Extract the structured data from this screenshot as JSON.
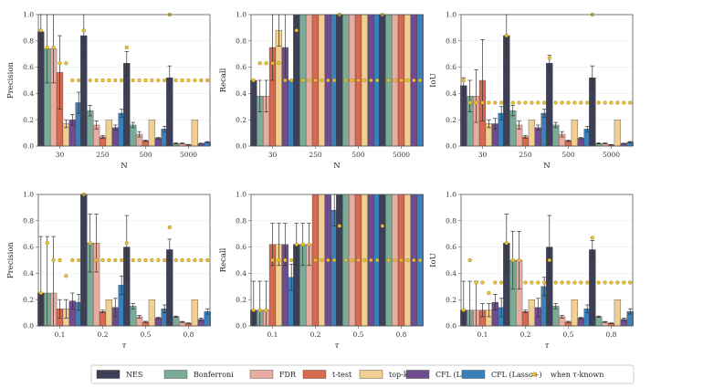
{
  "colors": {
    "NES": "#3c3f55",
    "Bonferroni": "#7aab97",
    "FDR": "#e8ada1",
    "t-test": "#d7694f",
    "top-k": "#f1ce92",
    "CFL (Lasso)": "#6e4c8e",
    "CFL (Lasso+)": "#3a80bb",
    "known": "#f0c233"
  },
  "legend": {
    "items": [
      {
        "name": "NES",
        "label": "NES",
        "kind": "box"
      },
      {
        "name": "Bonferroni",
        "label": "Bonferroni",
        "kind": "box"
      },
      {
        "name": "FDR",
        "label": "FDR",
        "kind": "box"
      },
      {
        "name": "t-test",
        "label": "t-test",
        "kind": "box"
      },
      {
        "name": "top-k",
        "label": "top-k",
        "kind": "box"
      },
      {
        "name": "CFL (Lasso)",
        "label": "CFL (Lasso)",
        "kind": "box"
      },
      {
        "name": "CFL (Lasso+)",
        "label": "CFL (Lasso+)",
        "kind": "box"
      },
      {
        "name": "known",
        "label": "when τ-known",
        "kind": "dot"
      }
    ]
  },
  "chart_data": [
    {
      "type": "bar",
      "title": "",
      "xlabel": "N",
      "ylabel": "Precision",
      "ylim": [
        0,
        1.0
      ],
      "yticks": [
        "0.0",
        "0.2",
        "0.4",
        "0.6",
        "0.8",
        "1.0"
      ],
      "categories": [
        "30",
        "250",
        "500",
        "5000"
      ],
      "series": [
        {
          "name": "NES",
          "values": [
            0.87,
            0.84,
            0.63,
            0.52
          ],
          "err": [
            0.13,
            0.16,
            0.09,
            0.09
          ]
        },
        {
          "name": "Bonferroni",
          "values": [
            0.74,
            0.27,
            0.16,
            0.02
          ],
          "err": [
            0.26,
            0.04,
            0.02,
            0.005
          ]
        },
        {
          "name": "FDR",
          "values": [
            0.74,
            0.16,
            0.09,
            0.02
          ],
          "err": [
            0.26,
            0.03,
            0.02,
            0.004
          ]
        },
        {
          "name": "t-test",
          "values": [
            0.56,
            0.07,
            0.04,
            0.01
          ],
          "err": [
            0.28,
            0.01,
            0.005,
            0.002
          ]
        },
        {
          "name": "top-k",
          "values": [
            0.17,
            0.2,
            0.2,
            0.2
          ],
          "err": [
            0.03,
            0,
            0,
            0
          ]
        },
        {
          "name": "CFL (Lasso)",
          "values": [
            0.2,
            0.14,
            0.06,
            0.02
          ],
          "err": [
            0.04,
            0.02,
            0.005,
            0.002
          ]
        },
        {
          "name": "CFL (Lasso+)",
          "values": [
            0.33,
            0.25,
            0.13,
            0.03
          ],
          "err": [
            0.08,
            0.03,
            0.02,
            0.004
          ]
        }
      ],
      "known": [
        [
          0.88,
          0.75,
          0.75,
          0.63,
          0.63,
          0.5,
          0.5
        ],
        [
          0.88,
          0.5,
          0.5,
          0.5,
          0.5,
          0.5,
          0.5
        ],
        [
          0.75,
          0.5,
          0.5,
          0.5,
          0.5,
          0.5,
          0.5
        ],
        [
          1.0,
          0.5,
          0.5,
          0.5,
          0.5,
          0.5,
          0.5
        ]
      ]
    },
    {
      "type": "bar",
      "title": "",
      "xlabel": "N",
      "ylabel": "Recall",
      "ylim": [
        0,
        1.0
      ],
      "yticks": [
        "0.0",
        "0.2",
        "0.4",
        "0.6",
        "0.8",
        "1.0"
      ],
      "categories": [
        "30",
        "250",
        "500",
        "5000"
      ],
      "series": [
        {
          "name": "NES",
          "values": [
            0.5,
            1.0,
            1.0,
            1.0
          ],
          "err": [
            0,
            0,
            0,
            0
          ]
        },
        {
          "name": "Bonferroni",
          "values": [
            0.38,
            1.0,
            1.0,
            1.0
          ],
          "err": [
            0.12,
            0,
            0,
            0
          ]
        },
        {
          "name": "FDR",
          "values": [
            0.38,
            1.0,
            1.0,
            1.0
          ],
          "err": [
            0.12,
            0,
            0,
            0
          ]
        },
        {
          "name": "t-test",
          "values": [
            0.75,
            1.0,
            1.0,
            1.0
          ],
          "err": [
            0.25,
            0,
            0,
            0
          ]
        },
        {
          "name": "top-k",
          "values": [
            0.88,
            1.0,
            1.0,
            1.0
          ],
          "err": [
            0.12,
            0,
            0,
            0
          ]
        },
        {
          "name": "CFL (Lasso)",
          "values": [
            0.75,
            1.0,
            1.0,
            1.0
          ],
          "err": [
            0.25,
            0,
            0,
            0
          ]
        },
        {
          "name": "CFL (Lasso+)",
          "values": [
            0.5,
            1.0,
            1.0,
            1.0
          ],
          "err": [
            0,
            0,
            0,
            0
          ]
        }
      ],
      "known": [
        [
          0.5,
          0.63,
          0.63,
          0.63,
          0.63,
          0.5,
          0.5
        ],
        [
          0.88,
          0.5,
          0.5,
          0.5,
          0.5,
          0.5,
          0.5
        ],
        [
          1.0,
          0.5,
          0.5,
          0.5,
          0.5,
          0.5,
          0.5
        ],
        [
          1.0,
          0.5,
          0.5,
          0.5,
          0.5,
          0.5,
          0.5
        ]
      ]
    },
    {
      "type": "bar",
      "title": "",
      "xlabel": "N",
      "ylabel": "IoU",
      "ylim": [
        0,
        1.0
      ],
      "yticks": [
        "0.0",
        "0.2",
        "0.4",
        "0.6",
        "0.8",
        "1.0"
      ],
      "categories": [
        "30",
        "250",
        "500",
        "5000"
      ],
      "series": [
        {
          "name": "NES",
          "values": [
            0.46,
            0.84,
            0.63,
            0.52
          ],
          "err": [
            0.06,
            0.16,
            0.06,
            0.09
          ]
        },
        {
          "name": "Bonferroni",
          "values": [
            0.38,
            0.27,
            0.16,
            0.02
          ],
          "err": [
            0.12,
            0.04,
            0.02,
            0.004
          ]
        },
        {
          "name": "FDR",
          "values": [
            0.38,
            0.16,
            0.09,
            0.02
          ],
          "err": [
            0.2,
            0.03,
            0.02,
            0.004
          ]
        },
        {
          "name": "t-test",
          "values": [
            0.5,
            0.07,
            0.04,
            0.01
          ],
          "err": [
            0.31,
            0.01,
            0.005,
            0.002
          ]
        },
        {
          "name": "top-k",
          "values": [
            0.17,
            0.2,
            0.2,
            0.2
          ],
          "err": [
            0.03,
            0,
            0,
            0
          ]
        },
        {
          "name": "CFL (Lasso)",
          "values": [
            0.17,
            0.14,
            0.06,
            0.02
          ],
          "err": [
            0.04,
            0.02,
            0.005,
            0.002
          ]
        },
        {
          "name": "CFL (Lasso+)",
          "values": [
            0.25,
            0.25,
            0.13,
            0.03
          ],
          "err": [
            0.05,
            0.03,
            0.02,
            0.004
          ]
        }
      ],
      "known": [
        [
          0.5,
          0.33,
          0.33,
          0.33,
          0.33,
          0.33,
          0.33
        ],
        [
          0.84,
          0.33,
          0.33,
          0.33,
          0.33,
          0.33,
          0.33
        ],
        [
          0.67,
          0.33,
          0.33,
          0.33,
          0.33,
          0.33,
          0.33
        ],
        [
          1.0,
          0.33,
          0.33,
          0.33,
          0.33,
          0.33,
          0.33
        ]
      ]
    },
    {
      "type": "bar",
      "title": "",
      "xlabel": "τ",
      "ylabel": "Precision",
      "ylim": [
        0,
        1.0
      ],
      "yticks": [
        "0.0",
        "0.2",
        "0.4",
        "0.6",
        "0.8",
        "1.0"
      ],
      "categories": [
        "0.1",
        "0.2",
        "0.5",
        "0.8"
      ],
      "series": [
        {
          "name": "NES",
          "values": [
            0.25,
            1.0,
            0.6,
            0.58
          ],
          "err": [
            0.43,
            0,
            0.24,
            0.08
          ]
        },
        {
          "name": "Bonferroni",
          "values": [
            0.25,
            0.63,
            0.15,
            0.07
          ],
          "err": [
            0.43,
            0.22,
            0.02,
            0.005
          ]
        },
        {
          "name": "FDR",
          "values": [
            0.25,
            0.63,
            0.07,
            0.03
          ],
          "err": [
            0.43,
            0.22,
            0.01,
            0.004
          ]
        },
        {
          "name": "t-test",
          "values": [
            0.13,
            0.11,
            0.03,
            0.02
          ],
          "err": [
            0.07,
            0.01,
            0.005,
            0.003
          ]
        },
        {
          "name": "top-k",
          "values": [
            0.13,
            0.2,
            0.2,
            0.2
          ],
          "err": [
            0.07,
            0,
            0,
            0
          ]
        },
        {
          "name": "CFL (Lasso)",
          "values": [
            0.19,
            0.14,
            0.06,
            0.05
          ],
          "err": [
            0.06,
            0.07,
            0.005,
            0.01
          ]
        },
        {
          "name": "CFL (Lasso+)",
          "values": [
            0.18,
            0.31,
            0.13,
            0.11
          ],
          "err": [
            0.06,
            0.07,
            0.03,
            0.02
          ]
        }
      ],
      "known": [
        [
          0.25,
          0.63,
          0.5,
          0.5,
          0.38,
          0.5,
          0.5
        ],
        [
          1.0,
          0.63,
          0.5,
          0.5,
          0.5,
          0.5,
          0.5
        ],
        [
          0.63,
          0.5,
          0.5,
          0.5,
          0.5,
          0.5,
          0.5
        ],
        [
          0.75,
          0.5,
          0.5,
          0.5,
          0.5,
          0.5,
          0.5
        ]
      ]
    },
    {
      "type": "bar",
      "title": "",
      "xlabel": "τ",
      "ylabel": "Recall",
      "ylim": [
        0,
        1.0
      ],
      "yticks": [
        "0.0",
        "0.2",
        "0.4",
        "0.6",
        "0.8",
        "1.0"
      ],
      "categories": [
        "0.1",
        "0.2",
        "0.5",
        "0.8"
      ],
      "series": [
        {
          "name": "NES",
          "values": [
            0.12,
            0.62,
            1.0,
            1.0
          ],
          "err": [
            0.22,
            0.16,
            0,
            0
          ]
        },
        {
          "name": "Bonferroni",
          "values": [
            0.12,
            0.62,
            1.0,
            1.0
          ],
          "err": [
            0.22,
            0.16,
            0,
            0
          ]
        },
        {
          "name": "FDR",
          "values": [
            0.12,
            0.62,
            1.0,
            1.0
          ],
          "err": [
            0.22,
            0.16,
            0,
            0
          ]
        },
        {
          "name": "t-test",
          "values": [
            0.62,
            1.0,
            1.0,
            1.0
          ],
          "err": [
            0.16,
            0,
            0,
            0
          ]
        },
        {
          "name": "top-k",
          "values": [
            0.62,
            1.0,
            1.0,
            1.0
          ],
          "err": [
            0.16,
            0,
            0,
            0
          ]
        },
        {
          "name": "CFL (Lasso)",
          "values": [
            0.62,
            1.0,
            1.0,
            1.0
          ],
          "err": [
            0.16,
            0,
            0,
            0
          ]
        },
        {
          "name": "CFL (Lasso+)",
          "values": [
            0.37,
            0.88,
            1.0,
            1.0
          ],
          "err": [
            0.1,
            0.12,
            0,
            0
          ]
        }
      ],
      "known": [
        [
          0.12,
          0.12,
          0.12,
          0.5,
          0.5,
          0.5,
          0.5
        ],
        [
          0.62,
          0.62,
          0.62,
          0.5,
          0.5,
          0.5,
          0.5
        ],
        [
          0.76,
          0.5,
          0.5,
          0.5,
          0.5,
          0.5,
          0.5
        ],
        [
          0.76,
          0.5,
          0.5,
          0.5,
          0.5,
          0.5,
          0.5
        ]
      ]
    },
    {
      "type": "bar",
      "title": "",
      "xlabel": "τ",
      "ylabel": "IoU",
      "ylim": [
        0,
        1.0
      ],
      "yticks": [
        "0.0",
        "0.2",
        "0.4",
        "0.6",
        "0.8",
        "1.0"
      ],
      "categories": [
        "0.1",
        "0.2",
        "0.5",
        "0.8"
      ],
      "series": [
        {
          "name": "NES",
          "values": [
            0.12,
            0.63,
            0.6,
            0.58
          ],
          "err": [
            0.22,
            0.22,
            0.24,
            0.07
          ]
        },
        {
          "name": "Bonferroni",
          "values": [
            0.12,
            0.5,
            0.15,
            0.07
          ],
          "err": [
            0.22,
            0.22,
            0.02,
            0.005
          ]
        },
        {
          "name": "FDR",
          "values": [
            0.12,
            0.5,
            0.07,
            0.03
          ],
          "err": [
            0.22,
            0.22,
            0.01,
            0.004
          ]
        },
        {
          "name": "t-test",
          "values": [
            0.12,
            0.11,
            0.03,
            0.02
          ],
          "err": [
            0.05,
            0.01,
            0.005,
            0.003
          ]
        },
        {
          "name": "top-k",
          "values": [
            0.12,
            0.2,
            0.2,
            0.2
          ],
          "err": [
            0.05,
            0,
            0,
            0
          ]
        },
        {
          "name": "CFL (Lasso)",
          "values": [
            0.18,
            0.14,
            0.06,
            0.05
          ],
          "err": [
            0.06,
            0.07,
            0.005,
            0.01
          ]
        },
        {
          "name": "CFL (Lasso+)",
          "values": [
            0.14,
            0.3,
            0.13,
            0.11
          ],
          "err": [
            0.07,
            0.07,
            0.03,
            0.02
          ]
        }
      ],
      "known": [
        [
          0.12,
          0.5,
          0.33,
          0.33,
          0.25,
          0.33,
          0.33
        ],
        [
          0.63,
          0.5,
          0.5,
          0.33,
          0.33,
          0.33,
          0.33
        ],
        [
          0.5,
          0.33,
          0.33,
          0.33,
          0.33,
          0.33,
          0.33
        ],
        [
          0.67,
          0.33,
          0.33,
          0.33,
          0.33,
          0.33,
          0.33
        ]
      ]
    }
  ]
}
